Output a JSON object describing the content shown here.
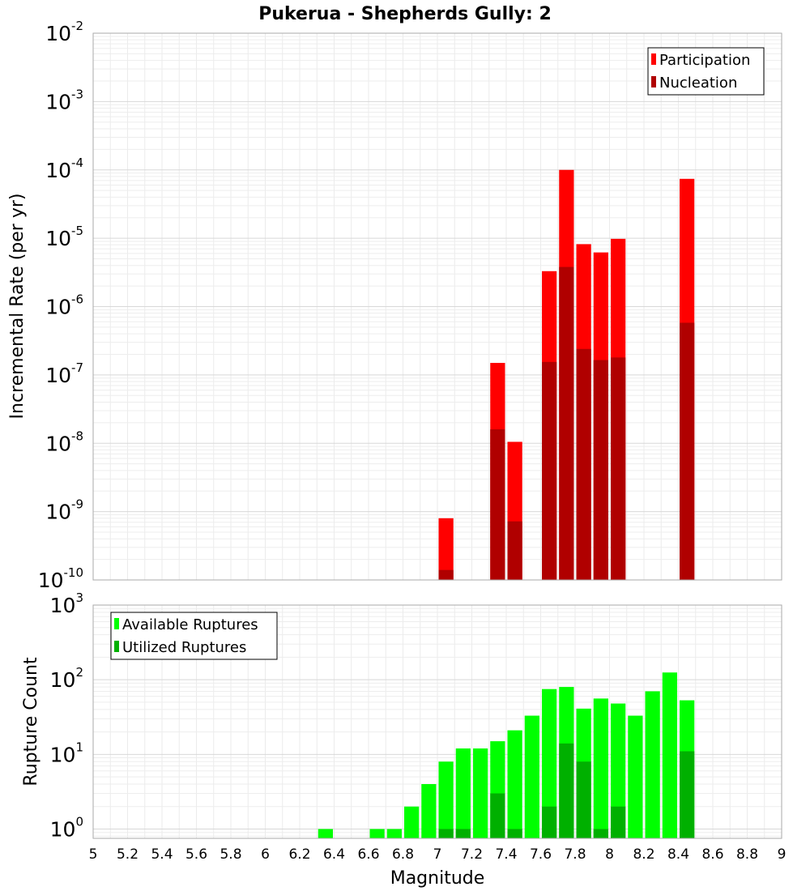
{
  "chart_data": [
    {
      "type": "bar",
      "title": "Pukerua - Shepherds Gully: 2",
      "xlabel": "Magnitude",
      "ylabel": "Incremental Rate (per yr)",
      "yscale": "log",
      "xlim": [
        5,
        9
      ],
      "ylim": [
        1e-10,
        0.01
      ],
      "y_tick_base": "10",
      "y_tick_exponents": [
        "-10",
        "-9",
        "-8",
        "-7",
        "-6",
        "-5",
        "-4",
        "-3",
        "-2"
      ],
      "legend_position": "top-right",
      "grid": true,
      "series": [
        {
          "name": "Participation",
          "color": "#ff0000",
          "x": [
            7.05,
            7.35,
            7.45,
            7.65,
            7.75,
            7.85,
            7.95,
            8.05,
            8.45
          ],
          "values": [
            8e-10,
            1.5e-07,
            1.05e-08,
            3.3e-06,
            0.0001,
            8.2e-06,
            6.2e-06,
            9.8e-06,
            7.4e-05
          ]
        },
        {
          "name": "Nucleation",
          "color": "#b00000",
          "x": [
            7.05,
            7.35,
            7.45,
            7.65,
            7.75,
            7.85,
            7.95,
            8.05,
            8.45
          ],
          "values": [
            1.4e-10,
            1.6e-08,
            7.2e-10,
            1.55e-07,
            3.8e-06,
            2.4e-07,
            1.65e-07,
            1.8e-07,
            5.8e-07
          ]
        }
      ]
    },
    {
      "type": "bar",
      "xlabel": "Magnitude",
      "ylabel": "Rupture Count",
      "yscale": "log",
      "xlim": [
        5,
        9
      ],
      "ylim": [
        0.75,
        1000
      ],
      "y_tick_base": "10",
      "y_tick_exponents": [
        "0",
        "1",
        "2",
        "3"
      ],
      "x_ticks": [
        "5",
        "5.2",
        "5.4",
        "5.6",
        "5.8",
        "6",
        "6.2",
        "6.4",
        "6.6",
        "6.8",
        "7",
        "7.2",
        "7.4",
        "7.6",
        "7.8",
        "8",
        "8.2",
        "8.4",
        "8.6",
        "8.8",
        "9"
      ],
      "legend_position": "top-left",
      "grid": true,
      "series": [
        {
          "name": "Available Ruptures",
          "color": "#00ff00",
          "x": [
            6.35,
            6.65,
            6.75,
            6.85,
            6.95,
            7.05,
            7.15,
            7.25,
            7.35,
            7.45,
            7.55,
            7.65,
            7.75,
            7.85,
            7.95,
            8.05,
            8.15,
            8.25,
            8.35,
            8.45
          ],
          "values": [
            1,
            1,
            1,
            2,
            4,
            8,
            12,
            12,
            15,
            21,
            33,
            75,
            80,
            41,
            56,
            48,
            33,
            70,
            125,
            53
          ]
        },
        {
          "name": "Utilized Ruptures",
          "color": "#00b000",
          "x": [
            7.05,
            7.15,
            7.35,
            7.45,
            7.65,
            7.75,
            7.85,
            7.95,
            8.05,
            8.45
          ],
          "values": [
            1,
            1,
            3,
            1,
            2,
            14,
            8,
            1,
            2,
            11
          ]
        }
      ]
    }
  ]
}
